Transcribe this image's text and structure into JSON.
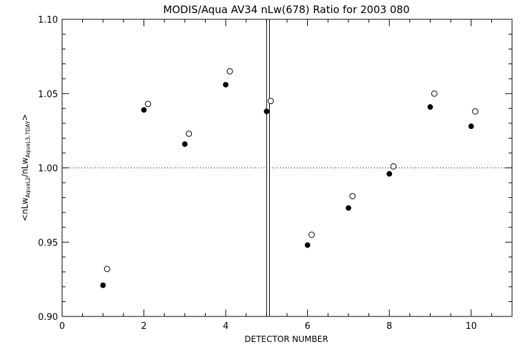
{
  "chart_data": {
    "type": "scatter",
    "title": "MODIS/Aqua AV34 nLw(678) Ratio for 2003 080",
    "xlabel": "DETECTOR NUMBER",
    "ylabel": {
      "prefix": "<nLw",
      "sub1": "AquaL2",
      "mid": "/nLw",
      "sub2": "AquaL3,7DAY",
      "suffix": ">"
    },
    "xlim": [
      0,
      11
    ],
    "ylim": [
      0.9,
      1.1
    ],
    "xticks": [
      0,
      2,
      4,
      6,
      8,
      10
    ],
    "yticks": [
      0.9,
      0.95,
      1.0,
      1.05,
      1.1
    ],
    "xtick_labels": [
      "0",
      "2",
      "4",
      "6",
      "8",
      "10"
    ],
    "ytick_labels": [
      "0.90",
      "0.95",
      "1.00",
      "1.05",
      "1.10"
    ],
    "reference_line": 1.0,
    "vertical_lines": [
      5.0,
      5.07
    ],
    "grid": false,
    "series": [
      {
        "marker": "filled-circle",
        "x": [
          1,
          2,
          3,
          4,
          5,
          6,
          7,
          8,
          9,
          10
        ],
        "y": [
          0.921,
          1.039,
          1.016,
          1.056,
          1.038,
          0.948,
          0.973,
          0.996,
          1.041,
          1.028
        ]
      },
      {
        "marker": "open-circle",
        "x": [
          1.1,
          2.1,
          3.1,
          4.1,
          5.1,
          6.1,
          7.1,
          8.1,
          9.1,
          10.1
        ],
        "y": [
          0.932,
          1.043,
          1.023,
          1.065,
          1.045,
          0.955,
          0.981,
          1.001,
          1.05,
          1.038
        ]
      }
    ]
  }
}
